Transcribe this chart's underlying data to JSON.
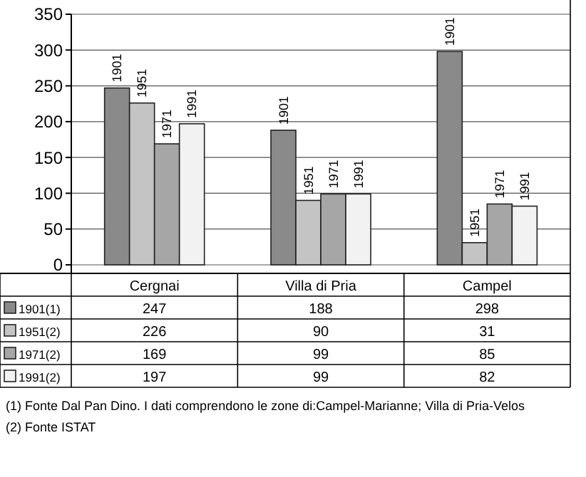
{
  "chart_data": {
    "type": "bar",
    "categories": [
      "Cergnai",
      "Villa di Pria",
      "Campel"
    ],
    "series": [
      {
        "name": "1901(1)",
        "color": "#8a8a8a",
        "values": [
          247,
          188,
          298
        ]
      },
      {
        "name": "1951(2)",
        "color": "#c4c4c4",
        "values": [
          226,
          90,
          31
        ]
      },
      {
        "name": "1971(2)",
        "color": "#a6a6a6",
        "values": [
          169,
          99,
          85
        ]
      },
      {
        "name": "1991(2)",
        "color": "#f2f2f2",
        "values": [
          197,
          99,
          82
        ]
      }
    ],
    "ylim": [
      0,
      350
    ],
    "yticks": [
      0,
      50,
      100,
      150,
      200,
      250,
      300,
      350
    ],
    "grid": "y",
    "data_labels": true,
    "legend": "bottom",
    "annotations": [
      "1901",
      "1951",
      "1971",
      "1991",
      "1901",
      "1951",
      "1971",
      "1991",
      "1901",
      "1951",
      "1971",
      "1991",
      "(1) Fonte Dal Pan Dino. I dati comprendono le zone di:Campel-Marianne; Villa di Pria-Velos",
      "(2) Fonte ISTAT"
    ]
  }
}
